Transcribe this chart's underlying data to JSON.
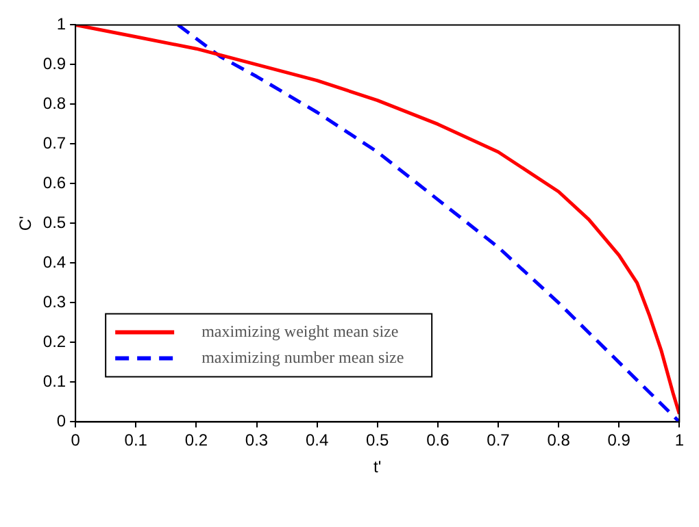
{
  "chart_data": {
    "type": "line",
    "xlabel": "t'",
    "ylabel": "C'",
    "xlim": [
      0,
      1
    ],
    "ylim": [
      0,
      1
    ],
    "xticks": [
      0,
      0.1,
      0.2,
      0.3,
      0.4,
      0.5,
      0.6,
      0.7,
      0.8,
      0.9,
      1
    ],
    "yticks": [
      0,
      0.1,
      0.2,
      0.3,
      0.4,
      0.5,
      0.6,
      0.7,
      0.8,
      0.9,
      1
    ],
    "grid": false,
    "legend": "bottom left",
    "series": [
      {
        "name": "maximizing weight mean size",
        "color": "#ff0000",
        "line_style": "solid",
        "x": [
          0,
          0.1,
          0.2,
          0.3,
          0.4,
          0.5,
          0.6,
          0.7,
          0.8,
          0.85,
          0.9,
          0.93,
          0.95,
          0.97,
          0.99,
          1
        ],
        "values": [
          1,
          0.97,
          0.94,
          0.9,
          0.86,
          0.81,
          0.75,
          0.68,
          0.58,
          0.51,
          0.42,
          0.35,
          0.27,
          0.18,
          0.07,
          0.02
        ]
      },
      {
        "name": "maximizing number mean size",
        "color": "#0000ff",
        "line_style": "dashed",
        "x": [
          0.17,
          0.24,
          0.3,
          0.4,
          0.5,
          0.6,
          0.7,
          0.8,
          0.9,
          1
        ],
        "values": [
          1,
          0.92,
          0.87,
          0.78,
          0.68,
          0.56,
          0.44,
          0.3,
          0.15,
          0
        ]
      }
    ]
  }
}
